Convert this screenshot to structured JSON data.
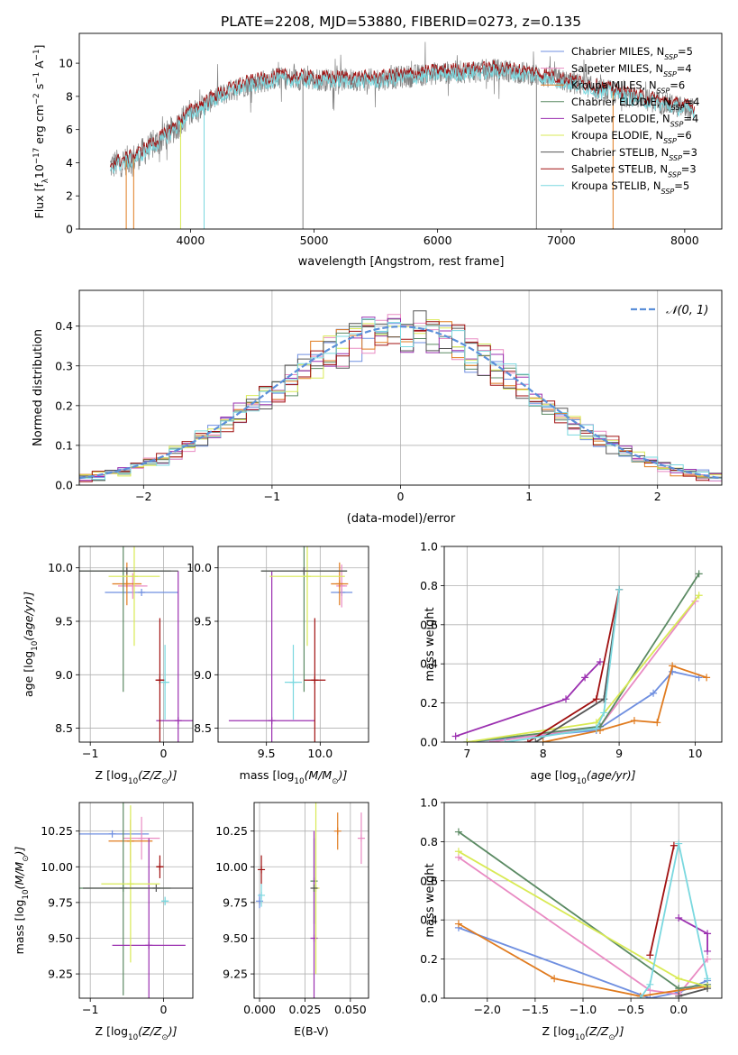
{
  "figure": {
    "title": "PLATE=2208, MJD=53880, FIBERID=0273, z=0.135"
  },
  "models": [
    {
      "name": "Chabrier MILES",
      "n_ssp": "5",
      "color": "#6f8fe0"
    },
    {
      "name": "Salpeter MILES",
      "n_ssp": "4",
      "color": "#e98bc3"
    },
    {
      "name": "Kroupa MILES",
      "n_ssp": "6",
      "color": "#e07b1f"
    },
    {
      "name": "Chabrier ELODIE",
      "n_ssp": "4",
      "color": "#5b8a63"
    },
    {
      "name": "Salpeter ELODIE",
      "n_ssp": "4",
      "color": "#9b30b0"
    },
    {
      "name": "Kroupa ELODIE",
      "n_ssp": "6",
      "color": "#d9ea55"
    },
    {
      "name": "Chabrier STELIB",
      "n_ssp": "3",
      "color": "#555555"
    },
    {
      "name": "Salpeter STELIB",
      "n_ssp": "3",
      "color": "#a01010"
    },
    {
      "name": "Kroupa STELIB",
      "n_ssp": "5",
      "color": "#7ad8df"
    }
  ],
  "chart_data": [
    {
      "id": "spectrum",
      "type": "line",
      "xlabel": "wavelength [Angstrom, rest frame]",
      "ylabel_parts": [
        "Flux [f",
        "λ",
        "10",
        "−17",
        " erg cm",
        "−2",
        " s",
        "−1",
        " A",
        "−1",
        "]"
      ],
      "xlim": [
        3100,
        8300
      ],
      "ylim": [
        0,
        11.8
      ],
      "xticks": [
        4000,
        5000,
        6000,
        7000,
        8000
      ],
      "yticks": [
        0,
        2,
        4,
        6,
        8,
        10
      ],
      "legend": "upper-right",
      "legend_nssp_label": "N",
      "legend_nssp_sub": "SSP",
      "observed_color": "#808080",
      "model_color": "#7ad8df",
      "model_shadow_color": "#a01010",
      "continuum": [
        [
          3350,
          3.8
        ],
        [
          3550,
          4.3
        ],
        [
          3800,
          5.6
        ],
        [
          4000,
          7.0
        ],
        [
          4200,
          7.9
        ],
        [
          4400,
          8.6
        ],
        [
          4700,
          9.1
        ],
        [
          5000,
          9.0
        ],
        [
          5500,
          9.0
        ],
        [
          6000,
          9.4
        ],
        [
          6500,
          9.6
        ],
        [
          6800,
          9.3
        ],
        [
          7100,
          8.8
        ],
        [
          7500,
          8.1
        ],
        [
          8000,
          7.3
        ],
        [
          8080,
          7.2
        ]
      ],
      "wave_range": [
        3350,
        8080
      ],
      "spikes": [
        3480,
        3540,
        3920,
        4110,
        4910,
        6800,
        7420
      ]
    },
    {
      "id": "residuals",
      "type": "histogram",
      "xlabel": "(data-model)/error",
      "ylabel": "Normed distribution",
      "xlim": [
        -2.5,
        2.5
      ],
      "ylim": [
        0,
        0.49
      ],
      "xticks": [
        -2,
        -1,
        0,
        1,
        2
      ],
      "yticks": [
        0.0,
        0.1,
        0.2,
        0.3,
        0.4
      ],
      "gaussian_label": "𝒩(0, 1)",
      "gaussian_color": "#5b8fd9",
      "bin_width": 0.1,
      "legend": "upper-right"
    },
    {
      "id": "age-vs-Z",
      "type": "scatter",
      "xlabel_parts": [
        "Z [log",
        "10",
        "(Z/Z",
        "⊙",
        ")]"
      ],
      "ylabel_parts": [
        "age  [log",
        "10",
        "(age/yr)]"
      ],
      "xlim": [
        -1.15,
        0.4
      ],
      "ylim": [
        8.37,
        10.2
      ],
      "xticks": [
        -1,
        0
      ],
      "yticks": [
        8.5,
        9.0,
        9.5,
        10.0
      ],
      "points": [
        {
          "model": 0,
          "x": -0.3,
          "y": 9.77,
          "xerr": 0.5,
          "yerr": 0.0
        },
        {
          "model": 1,
          "x": -0.42,
          "y": 9.83,
          "xerr": 0.2,
          "yerr": 0.12
        },
        {
          "model": 2,
          "x": -0.5,
          "y": 9.85,
          "xerr": 0.2,
          "yerr": 0.2
        },
        {
          "model": 3,
          "x": -0.55,
          "y": 9.97,
          "xerr": 0.65,
          "yerr": 1.13
        },
        {
          "model": 4,
          "x": 0.2,
          "y": 8.57,
          "xerr": 0.3,
          "yerr": 1.4
        },
        {
          "model": 5,
          "x": -0.4,
          "y": 9.92,
          "xerr": 0.35,
          "yerr": 0.65
        },
        {
          "model": 6,
          "x": -0.5,
          "y": 9.97,
          "xerr": 0.7,
          "yerr": 0.0
        },
        {
          "model": 7,
          "x": -0.05,
          "y": 8.95,
          "xerr": 0.06,
          "yerr": 0.58
        },
        {
          "model": 8,
          "x": 0.02,
          "y": 8.93,
          "xerr": 0.06,
          "yerr": 0.35
        }
      ]
    },
    {
      "id": "age-vs-mass",
      "type": "scatter",
      "xlabel_parts": [
        "mass [log",
        "10",
        "(M/M",
        "⊙",
        ")]"
      ],
      "ylabel_parts": [],
      "xlim": [
        9.05,
        10.45
      ],
      "ylim": [
        8.37,
        10.2
      ],
      "xticks": [
        9.5,
        10.0
      ],
      "yticks": [
        8.5,
        9.0,
        9.5,
        10.0
      ],
      "points": [
        {
          "model": 0,
          "x": 10.2,
          "y": 9.77,
          "xerr": 0.1,
          "yerr": 0.0
        },
        {
          "model": 1,
          "x": 10.2,
          "y": 9.83,
          "xerr": 0.05,
          "yerr": 0.2
        },
        {
          "model": 2,
          "x": 10.18,
          "y": 9.85,
          "xerr": 0.08,
          "yerr": 0.2
        },
        {
          "model": 3,
          "x": 9.85,
          "y": 9.97,
          "xerr": 0.4,
          "yerr": 1.13
        },
        {
          "model": 4,
          "x": 9.55,
          "y": 8.57,
          "xerr": 0.4,
          "yerr": 1.4
        },
        {
          "model": 5,
          "x": 9.88,
          "y": 9.92,
          "xerr": 0.35,
          "yerr": 0.65
        },
        {
          "model": 6,
          "x": 9.85,
          "y": 9.97,
          "xerr": 0.4,
          "yerr": 0.0
        },
        {
          "model": 7,
          "x": 9.95,
          "y": 8.95,
          "xerr": 0.1,
          "yerr": 0.58
        },
        {
          "model": 8,
          "x": 9.75,
          "y": 8.93,
          "xerr": 0.08,
          "yerr": 0.35
        }
      ]
    },
    {
      "id": "weight-vs-age",
      "type": "line",
      "xlabel_parts": [
        "age  [log",
        "10",
        "(age/yr)]"
      ],
      "ylabel": "mass weight",
      "xlim": [
        6.7,
        10.35
      ],
      "ylim": [
        0,
        1.0
      ],
      "xticks": [
        7,
        8,
        9,
        10
      ],
      "yticks": [
        0.0,
        0.2,
        0.4,
        0.6,
        0.8,
        1.0
      ],
      "series": [
        {
          "model": 0,
          "x": [
            7.0,
            8.7,
            9.45,
            9.7,
            10.05
          ],
          "y": [
            0.0,
            0.06,
            0.25,
            0.36,
            0.33
          ]
        },
        {
          "model": 1,
          "x": [
            7.3,
            8.75,
            10.0
          ],
          "y": [
            0.0,
            0.08,
            0.72
          ]
        },
        {
          "model": 2,
          "x": [
            8.0,
            8.75,
            9.2,
            9.5,
            9.7,
            10.15
          ],
          "y": [
            0.0,
            0.06,
            0.11,
            0.1,
            0.39,
            0.33
          ]
        },
        {
          "model": 3,
          "x": [
            7.0,
            8.75,
            10.05
          ],
          "y": [
            0.0,
            0.08,
            0.86
          ]
        },
        {
          "model": 4,
          "x": [
            6.85,
            8.3,
            8.55,
            8.75
          ],
          "y": [
            0.03,
            0.22,
            0.33,
            0.41
          ]
        },
        {
          "model": 5,
          "x": [
            7.0,
            8.7,
            10.05
          ],
          "y": [
            0.0,
            0.1,
            0.75
          ]
        },
        {
          "model": 6,
          "x": [
            7.9,
            8.8,
            9.0
          ],
          "y": [
            0.0,
            0.22,
            0.78
          ]
        },
        {
          "model": 7,
          "x": [
            7.8,
            8.7,
            9.0
          ],
          "y": [
            0.0,
            0.22,
            0.78
          ]
        },
        {
          "model": 8,
          "x": [
            7.5,
            8.7,
            8.8,
            9.0
          ],
          "y": [
            0.0,
            0.07,
            0.15,
            0.78
          ]
        }
      ]
    },
    {
      "id": "mass-vs-Z",
      "type": "scatter",
      "xlabel_parts": [
        "Z [log",
        "10",
        "(Z/Z",
        "⊙",
        ")]"
      ],
      "ylabel_parts": [
        "mass [log",
        "10",
        "(M/M",
        "⊙",
        ")]"
      ],
      "xlim": [
        -1.15,
        0.4
      ],
      "ylim": [
        9.08,
        10.45
      ],
      "xticks": [
        -1,
        0
      ],
      "yticks": [
        9.25,
        9.5,
        9.75,
        10.0,
        10.25
      ],
      "points": [
        {
          "model": 0,
          "x": -0.7,
          "y": 10.23,
          "xerr": 0.5,
          "yerr": 0.0
        },
        {
          "model": 1,
          "x": -0.3,
          "y": 10.2,
          "xerr": 0.25,
          "yerr": 0.15
        },
        {
          "model": 2,
          "x": -0.45,
          "y": 10.18,
          "xerr": 0.3,
          "yerr": 0.15
        },
        {
          "model": 3,
          "x": -0.55,
          "y": 9.85,
          "xerr": 0.65,
          "yerr": 0.75
        },
        {
          "model": 4,
          "x": -0.2,
          "y": 9.45,
          "xerr": 0.5,
          "yerr": 0.75
        },
        {
          "model": 5,
          "x": -0.45,
          "y": 9.88,
          "xerr": 0.4,
          "yerr": 0.55
        },
        {
          "model": 6,
          "x": -0.1,
          "y": 9.85,
          "xerr": 1.0,
          "yerr": 0.0
        },
        {
          "model": 7,
          "x": -0.05,
          "y": 10.0,
          "xerr": 0.05,
          "yerr": 0.08
        },
        {
          "model": 8,
          "x": 0.02,
          "y": 9.76,
          "xerr": 0.05,
          "yerr": 0.03
        }
      ]
    },
    {
      "id": "mass-vs-EBV",
      "type": "scatter",
      "xlabel": "E(B-V)",
      "xlim": [
        -0.003,
        0.06
      ],
      "ylim": [
        9.08,
        10.45
      ],
      "xticks": [
        0.0,
        0.025,
        0.05
      ],
      "yticks": [
        9.25,
        9.5,
        9.75,
        10.0,
        10.25
      ],
      "points": [
        {
          "model": 0,
          "x": 0.0,
          "y": 9.76,
          "xerr": 0.0,
          "yerr": 0.05
        },
        {
          "model": 1,
          "x": 0.056,
          "y": 10.2,
          "xerr": 0.0,
          "yerr": 0.18
        },
        {
          "model": 2,
          "x": 0.043,
          "y": 10.25,
          "xerr": 0.0,
          "yerr": 0.13
        },
        {
          "model": 3,
          "x": 0.03,
          "y": 9.9,
          "xerr": 0.0,
          "yerr": 0.3
        },
        {
          "model": 4,
          "x": 0.03,
          "y": 9.5,
          "xerr": 0.0,
          "yerr": 0.75
        },
        {
          "model": 5,
          "x": 0.031,
          "y": 9.85,
          "xerr": 0.0,
          "yerr": 0.6
        },
        {
          "model": 6,
          "x": 0.03,
          "y": 9.85,
          "xerr": 0.0,
          "yerr": 0.0
        },
        {
          "model": 7,
          "x": 0.001,
          "y": 9.98,
          "xerr": 0.0,
          "yerr": 0.1
        },
        {
          "model": 8,
          "x": 0.001,
          "y": 9.8,
          "xerr": 0.0,
          "yerr": 0.08
        }
      ]
    },
    {
      "id": "weight-vs-Z",
      "type": "line",
      "xlabel_parts": [
        "Z [log",
        "10",
        "(Z/Z",
        "⊙",
        ")]"
      ],
      "ylabel": "mass weight",
      "xlim": [
        -2.45,
        0.45
      ],
      "ylim": [
        0,
        1.0
      ],
      "xticks": [
        -2.0,
        -1.5,
        -1.0,
        -0.5,
        0.0
      ],
      "yticks": [
        0.0,
        0.2,
        0.4,
        0.6,
        0.8,
        1.0
      ],
      "series": [
        {
          "model": 0,
          "x": [
            -2.3,
            -0.3,
            0.0,
            0.3
          ],
          "y": [
            0.36,
            0.0,
            0.03,
            0.09
          ]
        },
        {
          "model": 1,
          "x": [
            -2.3,
            -0.3,
            0.0,
            0.3
          ],
          "y": [
            0.72,
            0.04,
            0.02,
            0.2
          ]
        },
        {
          "model": 2,
          "x": [
            -2.3,
            -1.3,
            -0.4,
            0.0,
            0.3
          ],
          "y": [
            0.38,
            0.1,
            0.01,
            0.04,
            0.06
          ]
        },
        {
          "model": 3,
          "x": [
            -2.3,
            0.0,
            0.3
          ],
          "y": [
            0.85,
            0.05,
            0.07
          ]
        },
        {
          "model": 4,
          "x": [
            0.0,
            0.3,
            0.3
          ],
          "y": [
            0.41,
            0.33,
            0.24
          ]
        },
        {
          "model": 5,
          "x": [
            -2.3,
            0.0,
            0.3
          ],
          "y": [
            0.75,
            0.1,
            0.06
          ]
        },
        {
          "model": 6,
          "x": [
            0.0,
            0.3
          ],
          "y": [
            0.01,
            0.05
          ]
        },
        {
          "model": 7,
          "x": [
            -0.3,
            -0.05
          ],
          "y": [
            0.22,
            0.78
          ]
        },
        {
          "model": 8,
          "x": [
            -0.4,
            -0.3,
            0.0,
            0.3
          ],
          "y": [
            0.0,
            0.07,
            0.79,
            0.1
          ]
        }
      ]
    }
  ]
}
